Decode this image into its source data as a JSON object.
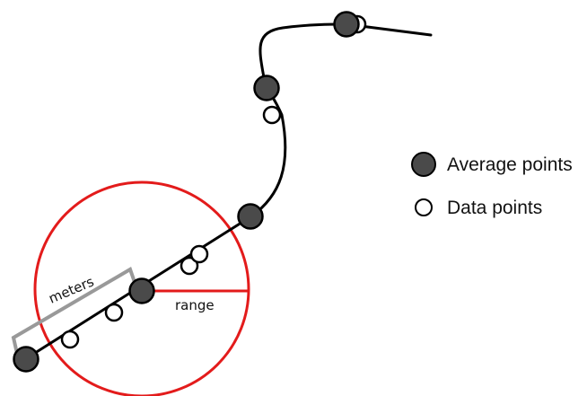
{
  "legend": {
    "average_label": "Average points",
    "data_label": "Data points"
  },
  "diagram": {
    "meters_label": "meters",
    "range_label": "range"
  },
  "colors": {
    "path_line": "#000000",
    "average_point_fill": "#4a4a4a",
    "data_point_fill": "#ffffff",
    "range_circle": "#e31b1b",
    "meters_bracket": "#999999",
    "background": "#ffffff"
  }
}
